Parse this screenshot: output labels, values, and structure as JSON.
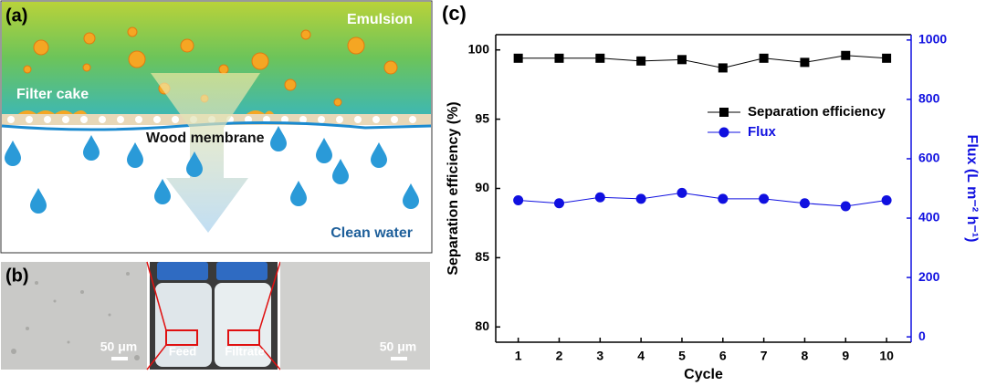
{
  "panel_a": {
    "label": "(a)",
    "emulsion": "Emulsion",
    "filter_cake": "Filter cake",
    "membrane": "Wood membrane",
    "clean_water": "Clean water"
  },
  "panel_b": {
    "label": "(b)",
    "scale_left": "50 μm",
    "feed": "Feed",
    "filtrate": "Filtrate",
    "scale_right": "50 μm"
  },
  "panel_c": {
    "label": "(c)"
  },
  "chart_data": {
    "type": "line",
    "x_label": "Cycle",
    "y_label": "Separation efficiency (%)",
    "y2_label": "Flux (L m⁻² h⁻¹)",
    "x": [
      1,
      2,
      3,
      4,
      5,
      6,
      7,
      8,
      9,
      10
    ],
    "xlim": [
      0.45,
      10.6
    ],
    "xticks": [
      1,
      2,
      3,
      4,
      5,
      6,
      7,
      8,
      9,
      10
    ],
    "ylim": [
      78.9,
      101.1
    ],
    "yticks": [
      80,
      85,
      90,
      95,
      100
    ],
    "y2lim": [
      -18,
      1018
    ],
    "y2ticks": [
      0,
      200,
      400,
      600,
      800,
      1000
    ],
    "y2color": "#1010e0",
    "legend": "upper right",
    "series": [
      {
        "name": "Separation efficiency",
        "color": "#000000",
        "marker": "square",
        "values": [
          99.4,
          99.4,
          99.4,
          99.2,
          99.3,
          98.7,
          99.4,
          99.1,
          99.6,
          99.4
        ]
      },
      {
        "name": "Flux",
        "color": "#1010e0",
        "marker": "circle",
        "axis": "y2",
        "values": [
          460,
          450,
          470,
          465,
          485,
          465,
          465,
          450,
          440,
          460
        ]
      }
    ]
  }
}
